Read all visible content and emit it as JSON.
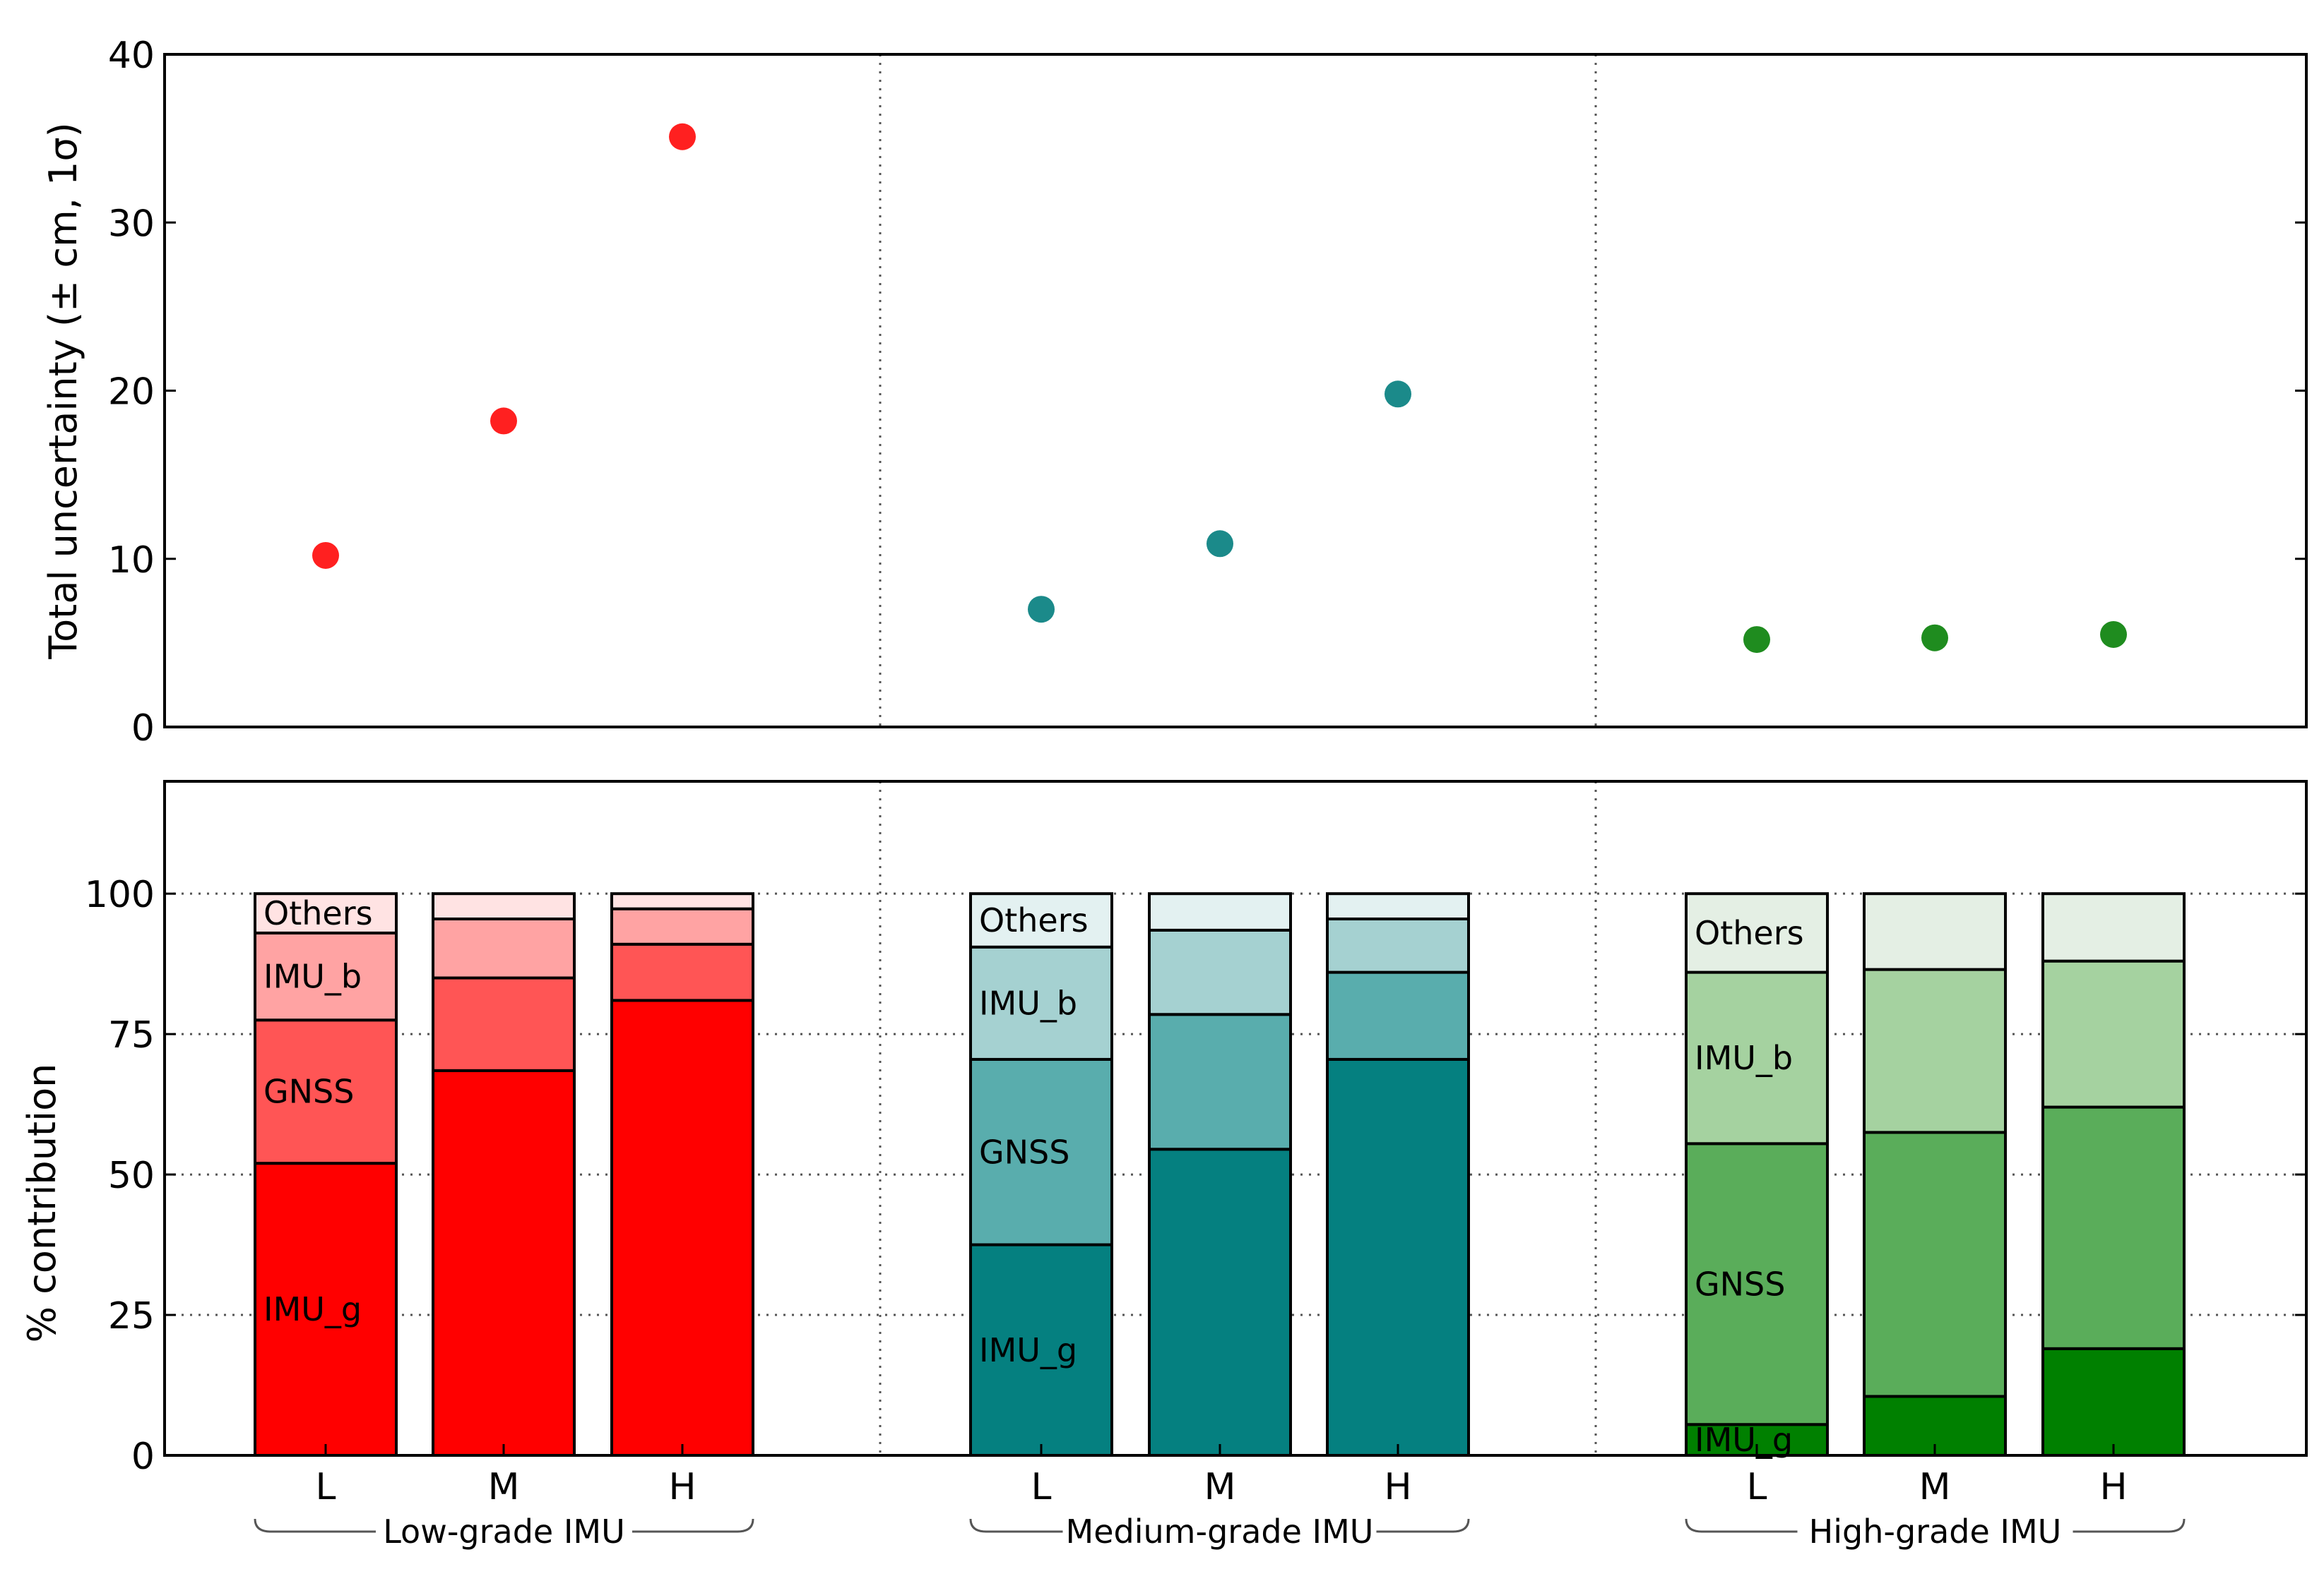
{
  "chart_data": [
    {
      "panel": "top",
      "type": "scatter",
      "title": "",
      "ylabel": "Total uncertainty (± cm, 1σ)",
      "ylim": [
        0,
        40
      ],
      "yticks": [
        0,
        10,
        20,
        30,
        40
      ],
      "grid": "vertical dotted separators between groups",
      "groups": [
        {
          "name": "Low-grade IMU",
          "color": "#ff2020",
          "categories": [
            "L",
            "M",
            "H"
          ],
          "values": [
            10.2,
            18.2,
            35.1
          ]
        },
        {
          "name": "Medium-grade IMU",
          "color": "#1b8a8a",
          "categories": [
            "L",
            "M",
            "H"
          ],
          "values": [
            7.0,
            10.9,
            19.8
          ]
        },
        {
          "name": "High-grade IMU",
          "color": "#1f8c1f",
          "categories": [
            "L",
            "M",
            "H"
          ],
          "values": [
            5.2,
            5.3,
            5.5
          ]
        }
      ]
    },
    {
      "panel": "bottom",
      "type": "bar",
      "stacked": true,
      "title": "",
      "ylabel": "% contribution",
      "ylim": [
        0,
        120
      ],
      "yticks": [
        0,
        25,
        50,
        75,
        100
      ],
      "grid": "dotted horizontal at ticks, dotted vertical between groups",
      "components": [
        "IMU_g",
        "GNSS",
        "IMU_b",
        "Others"
      ],
      "groups": [
        {
          "name": "Low-grade IMU",
          "colors": {
            "IMU_g": "#ff0000",
            "GNSS": "#ff5555",
            "IMU_b": "#ffa3a3",
            "Others": "#ffe3e3"
          },
          "labels": [
            "IMU_g",
            "GNSS",
            "IMU_b",
            "Others"
          ],
          "bars": [
            {
              "category": "L",
              "IMU_g": 52,
              "GNSS": 25.5,
              "IMU_b": 15.5,
              "Others": 7
            },
            {
              "category": "M",
              "IMU_g": 68.5,
              "GNSS": 16.5,
              "IMU_b": 10.5,
              "Others": 4.5
            },
            {
              "category": "H",
              "IMU_g": 81,
              "GNSS": 10,
              "IMU_b": 6.3,
              "Others": 2.7
            }
          ]
        },
        {
          "name": "Medium-grade IMU",
          "colors": {
            "IMU_g": "#058080",
            "GNSS": "#59adad",
            "IMU_b": "#a5d1d1",
            "Others": "#e3f1f1"
          },
          "labels": [
            "IMU_g",
            "GNSS",
            "IMU_b",
            "Others"
          ],
          "bars": [
            {
              "category": "L",
              "IMU_g": 37.5,
              "GNSS": 33,
              "IMU_b": 20,
              "Others": 9.5
            },
            {
              "category": "M",
              "IMU_g": 54.5,
              "GNSS": 24,
              "IMU_b": 15,
              "Others": 6.5
            },
            {
              "category": "H",
              "IMU_g": 70.5,
              "GNSS": 15.5,
              "IMU_b": 9.5,
              "Others": 4.5
            }
          ]
        },
        {
          "name": "High-grade IMU",
          "colors": {
            "IMU_g": "#008000",
            "GNSS": "#5aad5a",
            "IMU_b": "#a5d2a0",
            "Others": "#e4efe4"
          },
          "labels": [
            "IMU_g",
            "GNSS",
            "IMU_b",
            "Others"
          ],
          "bars": [
            {
              "category": "L",
              "IMU_g": 5.5,
              "GNSS": 50,
              "IMU_b": 30.5,
              "Others": 14
            },
            {
              "category": "M",
              "IMU_g": 10.5,
              "GNSS": 47,
              "IMU_b": 29,
              "Others": 13.5
            },
            {
              "category": "H",
              "IMU_g": 19,
              "GNSS": 43,
              "IMU_b": 26,
              "Others": 12
            }
          ]
        }
      ]
    }
  ]
}
